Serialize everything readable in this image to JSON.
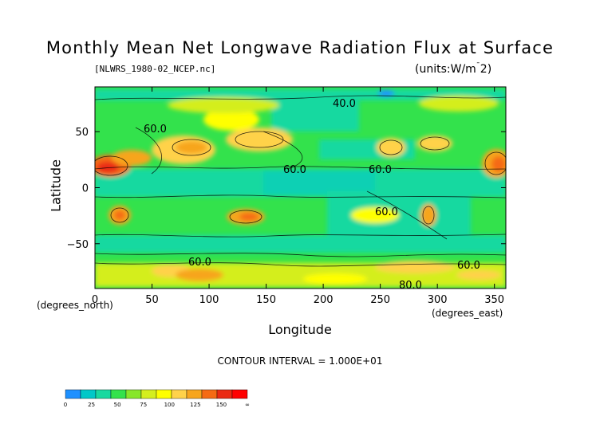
{
  "chart_data": {
    "type": "heatmap",
    "title": "Monthly Mean Net Longwave Radiation Flux at Surface",
    "file_label": "[NLWRS_1980-02_NCEP.nc]",
    "units_label": "(units:W/m^2)",
    "xlabel": "Longitude",
    "ylabel": "Latitude",
    "x_unit_label": "(degrees_east)",
    "y_unit_label": "(degrees_north)",
    "xlim": [
      0,
      360
    ],
    "ylim": [
      -90,
      90
    ],
    "x_ticks": [
      0,
      50,
      100,
      150,
      200,
      250,
      300,
      350
    ],
    "y_ticks": [
      50,
      0,
      -50
    ],
    "contour_interval_label": "CONTOUR INTERVAL = 1.000E+01",
    "contour_labels": [
      "40.0",
      "60.0",
      "60.0",
      "60.0",
      "60.0",
      "60.0",
      "60.0",
      "80.0"
    ],
    "colorbar": {
      "tick_labels": [
        "0",
        "25",
        "50",
        "75",
        "100",
        "125",
        "150",
        "∞"
      ],
      "colors": [
        "#1e90ff",
        "#00c8c8",
        "#19d9a0",
        "#33e24c",
        "#87e62a",
        "#d4ee1f",
        "#ffff00",
        "#ffd24a",
        "#f7a51e",
        "#f56a14",
        "#ea2a12",
        "#ff0000"
      ]
    }
  }
}
